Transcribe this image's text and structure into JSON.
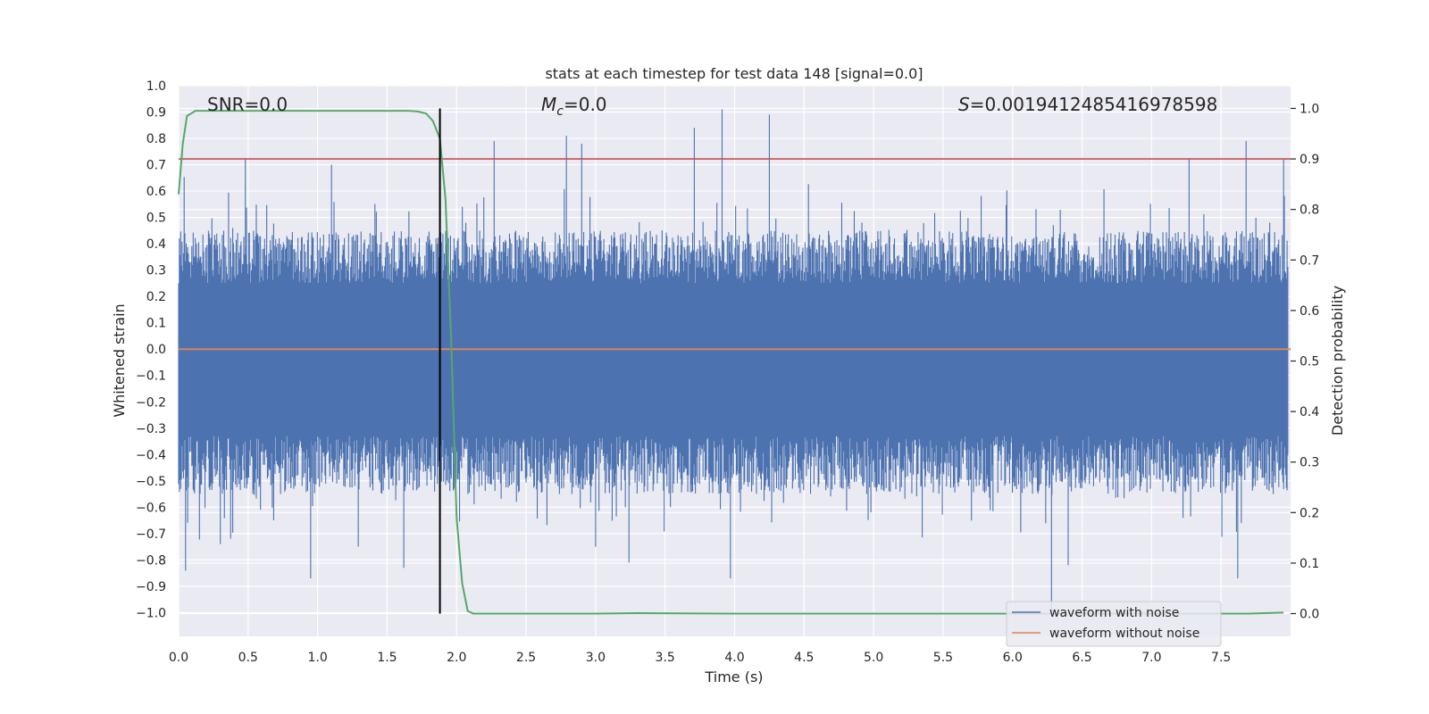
{
  "chart_data": {
    "type": "line",
    "title": "stats at each timestep for test data 148 [signal=0.0]",
    "xlabel": "Time (s)",
    "ylabel": "Whitened strain",
    "ylabel_right": "Detection probability",
    "xlim": [
      0.0,
      8.0
    ],
    "ylim": [
      -1.09,
      1.0
    ],
    "ylim_right": [
      -0.045,
      1.045
    ],
    "x_ticks": [
      "0.0",
      "0.5",
      "1.0",
      "1.5",
      "2.0",
      "2.5",
      "3.0",
      "3.5",
      "4.0",
      "4.5",
      "5.0",
      "5.5",
      "6.0",
      "6.5",
      "7.0",
      "7.5"
    ],
    "y_ticks": [
      "1.0",
      "0.9",
      "0.8",
      "0.7",
      "0.6",
      "0.5",
      "0.4",
      "0.3",
      "0.2",
      "0.1",
      "0.0",
      "−0.1",
      "−0.2",
      "−0.3",
      "−0.4",
      "−0.5",
      "−0.6",
      "−0.7",
      "−0.8",
      "−0.9",
      "−1.0"
    ],
    "y_ticks_right": [
      "1.0",
      "0.9",
      "0.8",
      "0.7",
      "0.6",
      "0.5",
      "0.4",
      "0.3",
      "0.2",
      "0.1",
      "0.0"
    ],
    "annotations": {
      "snr": "SNR=0.0",
      "mc_symbol": "M",
      "mc_sub": "c",
      "mc_value": "=0.0",
      "s_symbol": "S",
      "s_value": "=0.0019412485416978598"
    },
    "noise_envelope": {
      "n_points": 1600,
      "typical_upper": 0.35,
      "typical_lower": -0.45,
      "peaks": [
        {
          "x": 0.05,
          "y": -0.84
        },
        {
          "x": 0.3,
          "y": -0.74
        },
        {
          "x": 0.48,
          "y": 0.72
        },
        {
          "x": 0.95,
          "y": -0.87
        },
        {
          "x": 1.1,
          "y": 0.7
        },
        {
          "x": 1.62,
          "y": -0.83
        },
        {
          "x": 2.27,
          "y": 0.79
        },
        {
          "x": 2.79,
          "y": 0.81
        },
        {
          "x": 2.9,
          "y": 0.78
        },
        {
          "x": 3.0,
          "y": -0.75
        },
        {
          "x": 3.24,
          "y": -0.81
        },
        {
          "x": 3.71,
          "y": 0.84
        },
        {
          "x": 3.91,
          "y": 0.91
        },
        {
          "x": 3.97,
          "y": -0.87
        },
        {
          "x": 4.25,
          "y": 0.89
        },
        {
          "x": 6.28,
          "y": -1.0
        },
        {
          "x": 6.4,
          "y": -0.82
        },
        {
          "x": 7.27,
          "y": 0.72
        },
        {
          "x": 7.62,
          "y": -0.87
        },
        {
          "x": 7.68,
          "y": 0.79
        },
        {
          "x": 7.95,
          "y": 0.72
        }
      ]
    },
    "series": [
      {
        "name": "waveform with noise",
        "color": "#4c72b0"
      },
      {
        "name": "waveform without noise",
        "color": "#dd8452",
        "constant_y": 0.0
      },
      {
        "color": "#55a868",
        "axis": "right",
        "x": [
          0.0,
          0.03,
          0.06,
          0.12,
          0.2,
          0.5,
          1.0,
          1.5,
          1.65,
          1.72,
          1.78,
          1.83,
          1.88,
          1.92,
          1.96,
          2.0,
          2.04,
          2.08,
          2.12,
          2.3,
          3.0,
          3.3,
          4.0,
          5.0,
          6.0,
          7.0,
          7.7,
          7.95
        ],
        "y": [
          0.83,
          0.93,
          0.985,
          0.995,
          0.995,
          0.995,
          0.995,
          0.995,
          0.995,
          0.994,
          0.99,
          0.975,
          0.94,
          0.82,
          0.55,
          0.19,
          0.06,
          0.005,
          0.0,
          0.0,
          0.0,
          0.001,
          0.0,
          0.0,
          0.0,
          0.0,
          0.0,
          0.002
        ]
      }
    ],
    "threshold": {
      "axis": "right",
      "y": 0.9,
      "color": "#c44e52"
    },
    "marker_line": {
      "x": 1.88,
      "color": "#000000"
    },
    "legend": {
      "placement": "bottom-right",
      "entries": [
        "waveform with noise",
        "waveform without noise"
      ]
    },
    "grid": true,
    "background": "#eaeaf2"
  }
}
